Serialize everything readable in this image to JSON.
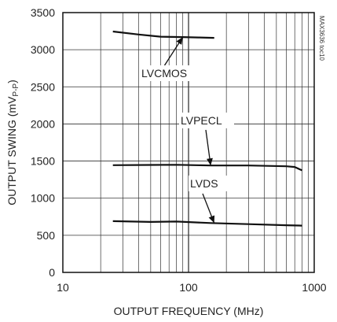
{
  "chart_data": {
    "type": "line",
    "xlabel": "OUTPUT FREQUENCY (MHz)",
    "ylabel": "OUTPUT SWING (mV",
    "ylabel_sub": "P-P",
    "ylabel_close": ")",
    "x_scale": "log",
    "xlim": [
      10,
      1000
    ],
    "ylim": [
      0,
      3500
    ],
    "x_ticks": [
      10,
      100,
      1000
    ],
    "x_tick_labels": [
      "10",
      "100",
      "1000"
    ],
    "y_ticks": [
      0,
      500,
      1000,
      1500,
      2000,
      2500,
      3000,
      3500
    ],
    "y_tick_labels": [
      "0",
      "500",
      "1000",
      "1500",
      "2000",
      "2500",
      "3000",
      "3500"
    ],
    "grid": true,
    "watermark": "MAX3636 toc10",
    "series": [
      {
        "name": "LVCMOS",
        "x": [
          25,
          40,
          60,
          90,
          120,
          160
        ],
        "y": [
          3245,
          3205,
          3175,
          3170,
          3165,
          3160
        ]
      },
      {
        "name": "LVPECL",
        "x": [
          25,
          50,
          80,
          150,
          300,
          600,
          700,
          800
        ],
        "y": [
          1445,
          1448,
          1450,
          1440,
          1440,
          1430,
          1420,
          1375
        ]
      },
      {
        "name": "LVDS",
        "x": [
          25,
          50,
          80,
          150,
          300,
          600,
          800
        ],
        "y": [
          690,
          680,
          685,
          665,
          650,
          635,
          630
        ]
      }
    ],
    "annotations": [
      {
        "text": "LVCMOS",
        "series": "LVCMOS"
      },
      {
        "text": "LVPECL",
        "series": "LVPECL"
      },
      {
        "text": "LVDS",
        "series": "LVDS"
      }
    ]
  }
}
